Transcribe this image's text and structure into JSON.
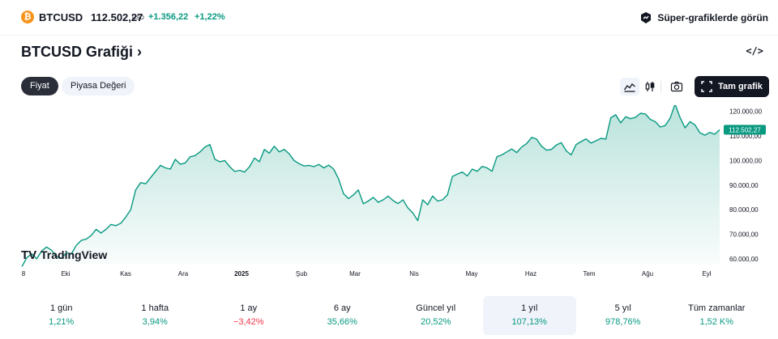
{
  "header": {
    "coin_glyph": "₿",
    "symbol": "BTCUSD",
    "price": "112.502,27",
    "currency": "USD",
    "change": "+1.356,22",
    "change_percent": "+1,22%",
    "super_charts_label": "Süper-grafiklerde görün"
  },
  "title": "BTCUSD Grafiği",
  "title_chevron": "›",
  "embed_glyph": "</>",
  "segments": [
    "Fiyat",
    "Piyasa Değeri"
  ],
  "toolbar": {
    "fullscreen_label": "Tam grafik"
  },
  "watermark": {
    "logo_text": "TV",
    "brand": "TradingView"
  },
  "chart_data": {
    "type": "area",
    "x_ticks": [
      "8",
      "Eki",
      "Kas",
      "Ara",
      "2025",
      "Şub",
      "Mar",
      "Nis",
      "May",
      "Haz",
      "Tem",
      "Ağu",
      "Eyl"
    ],
    "y_ticks": [
      "120.000,00",
      "110.000,00",
      "100.000,00",
      "90.000,00",
      "80.000,00",
      "70.000,00",
      "60.000,00"
    ],
    "ylim": [
      58000,
      122500
    ],
    "last_price_label": "112.502,27",
    "values": [
      56800,
      60500,
      62000,
      60000,
      63200,
      64800,
      63500,
      61000,
      60200,
      62500,
      62000,
      65500,
      67500,
      68000,
      69500,
      72000,
      70500,
      72000,
      74000,
      73500,
      74500,
      77000,
      80000,
      88000,
      91000,
      90500,
      93000,
      95500,
      98000,
      97000,
      96500,
      100500,
      98500,
      99000,
      101500,
      102000,
      103500,
      105500,
      106500,
      100500,
      99500,
      100000,
      97500,
      95500,
      96000,
      95300,
      97500,
      101000,
      99500,
      104500,
      103000,
      105800,
      103500,
      104500,
      102800,
      100000,
      98700,
      97800,
      98000,
      97500,
      98400,
      97000,
      98100,
      96500,
      92500,
      86500,
      84500,
      86000,
      88000,
      82400,
      83500,
      85000,
      83000,
      84000,
      85500,
      83700,
      82500,
      84000,
      80700,
      78700,
      75500,
      84000,
      82000,
      85500,
      83500,
      84000,
      86000,
      93500,
      94500,
      95300,
      93700,
      96500,
      95600,
      97600,
      97000,
      95600,
      101500,
      102300,
      103500,
      104700,
      103200,
      105500,
      106900,
      109400,
      108700,
      105800,
      104200,
      104500,
      106300,
      107300,
      103900,
      102300,
      106500,
      107700,
      108800,
      107100,
      108000,
      109000,
      108700,
      117400,
      118600,
      115300,
      117800,
      117000,
      117600,
      119200,
      118900,
      116700,
      115800,
      113600,
      114200,
      117200,
      123000,
      117500,
      113300,
      115800,
      114500,
      111300,
      110300,
      111400,
      110700,
      112500
    ],
    "start_x": 27,
    "end_x": 888
  },
  "periods": [
    {
      "label": "1 gün",
      "value": "1,21%",
      "dir": "pos"
    },
    {
      "label": "1 hafta",
      "value": "3,94%",
      "dir": "pos"
    },
    {
      "label": "1 ay",
      "value": "−3,42%",
      "dir": "neg"
    },
    {
      "label": "6 ay",
      "value": "35,66%",
      "dir": "pos"
    },
    {
      "label": "Güncel yıl",
      "value": "20,52%",
      "dir": "pos"
    },
    {
      "label": "1 yıl",
      "value": "107,13%",
      "dir": "pos",
      "selected": true
    },
    {
      "label": "5 yıl",
      "value": "978,76%",
      "dir": "pos"
    },
    {
      "label": "Tüm zamanlar",
      "value": "1,52 K%",
      "dir": "pos"
    }
  ],
  "colors": {
    "line": "#089981",
    "accent": "#131722",
    "negative": "#f23645"
  },
  "icons": [
    "bitcoin-coin-icon",
    "super-charts-icon",
    "embed-code-icon",
    "area-chart-icon",
    "candles-icon",
    "camera-icon",
    "fullscreen-icon",
    "tradingview-logo-icon"
  ]
}
